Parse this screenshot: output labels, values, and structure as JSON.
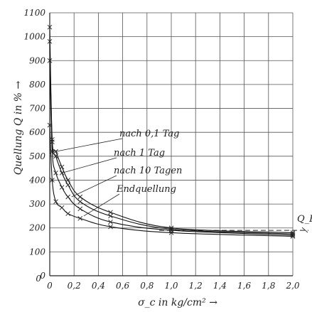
{
  "chart_data": {
    "type": "line",
    "title": "",
    "xlabel": "σ_c in kg/cm² →",
    "ylabel": "Quellung Q in % →",
    "xlim": [
      0,
      2.0
    ],
    "ylim": [
      0,
      1100
    ],
    "x_ticks": [
      "0",
      "0,2",
      "0,4",
      "0,6",
      "0,8",
      "1,0",
      "1,2",
      "1,4",
      "1,6",
      "1,8",
      "2,0"
    ],
    "x_tick_values": [
      0,
      0.2,
      0.4,
      0.6,
      0.8,
      1.0,
      1.2,
      1.4,
      1.6,
      1.8,
      2.0
    ],
    "y_ticks": [
      "0",
      "100",
      "200",
      "300",
      "400",
      "500",
      "600",
      "700",
      "800",
      "900",
      "1000",
      "1100"
    ],
    "y_tick_values": [
      0,
      100,
      200,
      300,
      400,
      500,
      600,
      700,
      800,
      900,
      1000,
      1100
    ],
    "x_origin_label": "0",
    "grid": true,
    "series": [
      {
        "name": "nach 0,1 Tag",
        "x": [
          0.0,
          0.02,
          0.05,
          0.1,
          0.15,
          0.25,
          0.5,
          1.0,
          2.0
        ],
        "y": [
          1040,
          570,
          520,
          455,
          400,
          330,
          265,
          200,
          180
        ]
      },
      {
        "name": "nach 1 Tag",
        "x": [
          0.0,
          0.02,
          0.05,
          0.1,
          0.15,
          0.25,
          0.5,
          1.0,
          2.0
        ],
        "y": [
          980,
          560,
          500,
          430,
          380,
          310,
          250,
          195,
          175
        ]
      },
      {
        "name": "nach 10 Tagen",
        "x": [
          0.0,
          0.02,
          0.05,
          0.1,
          0.15,
          0.25,
          0.5,
          1.0,
          2.0
        ],
        "y": [
          900,
          520,
          430,
          370,
          330,
          280,
          225,
          190,
          170
        ]
      },
      {
        "name": "Endquellung",
        "x": [
          0.0,
          0.02,
          0.05,
          0.1,
          0.15,
          0.25,
          0.5,
          1.0,
          2.0
        ],
        "y": [
          630,
          400,
          310,
          285,
          260,
          240,
          205,
          180,
          165
        ]
      }
    ],
    "reference_line": {
      "label": "Q_E",
      "y": 190
    },
    "annotations": [
      "nach 0,1 Tag",
      "nach 1 Tag",
      "nach 10 Tagen",
      "Endquellung"
    ]
  }
}
